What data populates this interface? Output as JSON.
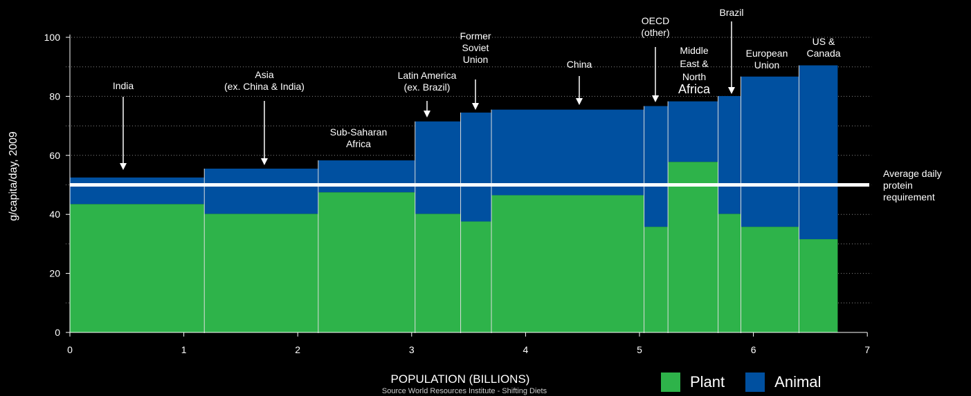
{
  "chart_data": {
    "type": "bar",
    "subtype": "variable-width stacked bar (mekko)",
    "xlabel": "POPULATION (BILLIONS)",
    "ylabel": "g/capita/day, 2009",
    "source": "Source World Resources Institute - Shifting Diets",
    "xlim": [
      0,
      7
    ],
    "ylim": [
      0,
      100
    ],
    "xticks": [
      0,
      1,
      2,
      3,
      4,
      5,
      6,
      7
    ],
    "yticks": [
      0,
      20,
      40,
      60,
      80,
      100
    ],
    "grid": "dotted horizontal",
    "series": [
      {
        "name": "Plant",
        "color": "#2eb34a"
      },
      {
        "name": "Animal",
        "color": "#0050a0"
      }
    ],
    "regions": [
      {
        "label": "India",
        "x0": 0.0,
        "x1": 1.18,
        "plant": 43.5,
        "total": 52.5
      },
      {
        "label": "Asia (ex. China & India)",
        "x0": 1.18,
        "x1": 2.18,
        "plant": 40.2,
        "total": 55.5
      },
      {
        "label": "Sub-Saharan Africa",
        "x0": 2.18,
        "x1": 3.03,
        "plant": 47.5,
        "total": 58.3
      },
      {
        "label": "Latin America (ex. Brazil)",
        "x0": 3.03,
        "x1": 3.43,
        "plant": 40.2,
        "total": 71.5
      },
      {
        "label": "Former Soviet Union",
        "x0": 3.43,
        "x1": 3.7,
        "plant": 37.6,
        "total": 74.5
      },
      {
        "label": "China",
        "x0": 3.7,
        "x1": 5.04,
        "plant": 46.5,
        "total": 75.5
      },
      {
        "label": "OECD (other)",
        "x0": 5.04,
        "x1": 5.25,
        "plant": 35.8,
        "total": 76.7
      },
      {
        "label": "Middle East & North Africa",
        "x0": 5.25,
        "x1": 5.69,
        "plant": 57.8,
        "total": 78.3
      },
      {
        "label": "Brazil",
        "x0": 5.69,
        "x1": 5.89,
        "plant": 40.2,
        "total": 80.1
      },
      {
        "label": "European Union",
        "x0": 5.89,
        "x1": 6.4,
        "plant": 35.8,
        "total": 86.7
      },
      {
        "label": "US & Canada",
        "x0": 6.4,
        "x1": 6.74,
        "plant": 31.6,
        "total": 90.5
      }
    ],
    "reference_line": {
      "value": 50,
      "label": [
        "Average daily",
        "protein",
        "requirement"
      ]
    },
    "annotations": [
      {
        "lines": [
          "India"
        ],
        "arrow": true
      },
      {
        "lines": [
          "Asia",
          "(ex. China & India)"
        ],
        "arrow": true
      },
      {
        "lines": [
          "Sub-Saharan",
          "Africa"
        ],
        "arrow": false
      },
      {
        "lines": [
          "Latin America",
          "(ex. Brazil)"
        ],
        "arrow": true
      },
      {
        "lines": [
          "Former",
          "Soviet",
          "Union"
        ],
        "arrow": true
      },
      {
        "lines": [
          "China"
        ],
        "arrow": true
      },
      {
        "lines": [
          "OECD",
          "(other)"
        ],
        "arrow": true
      },
      {
        "lines": [
          "Middle",
          "East &",
          "North",
          "Africa"
        ],
        "arrow": false
      },
      {
        "lines": [
          "Brazil"
        ],
        "arrow": true
      },
      {
        "lines": [
          "European",
          "Union"
        ],
        "arrow": false
      },
      {
        "lines": [
          "US &",
          "Canada"
        ],
        "arrow": false
      }
    ]
  }
}
